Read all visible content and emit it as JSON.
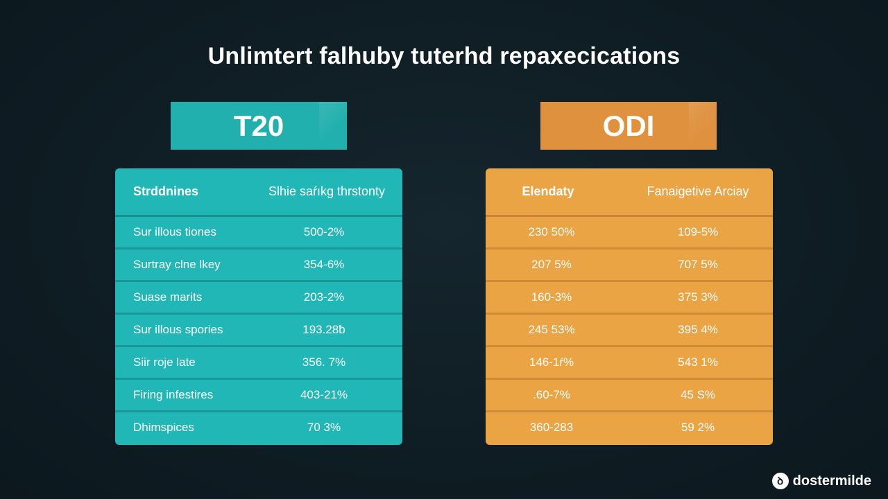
{
  "title": "Unlimtert falhuby tuterhd repaxecications",
  "formats": {
    "left": {
      "label": "T20",
      "color": "#21b0ad"
    },
    "right": {
      "label": "ODI",
      "color": "#df913e"
    }
  },
  "t20_table": {
    "headers": [
      "Strddnines",
      "Slhie saŕıkg thrstonty"
    ],
    "rows": [
      [
        "Sur illous tiones",
        "500-2%"
      ],
      [
        "Surtray clne lkey",
        "354-6%"
      ],
      [
        "Suase marits",
        "203-2%"
      ],
      [
        "Sur illous spories",
        "193.28ƀ"
      ],
      [
        "Siir roje late",
        "356. 7%"
      ],
      [
        "Firing infestires",
        "403-21%"
      ],
      [
        "Dhimspices",
        "70 3%"
      ]
    ]
  },
  "odi_table": {
    "headers": [
      "Elendaty",
      "Fanaigetive Arciay"
    ],
    "rows": [
      [
        "230 50%",
        "109-5%"
      ],
      [
        "207 5%",
        "707 5%"
      ],
      [
        "160-3%",
        "375 3%"
      ],
      [
        "245 53%",
        "395 4%"
      ],
      [
        "146-1ŕ%",
        "543 1%"
      ],
      [
        ".60-7%",
        "45 S%"
      ],
      [
        "360-283",
        "59 2%"
      ]
    ]
  },
  "brand": {
    "icon": "brand-logo-icon",
    "icon_glyph": "ꝺ",
    "name": "dostermilde"
  }
}
